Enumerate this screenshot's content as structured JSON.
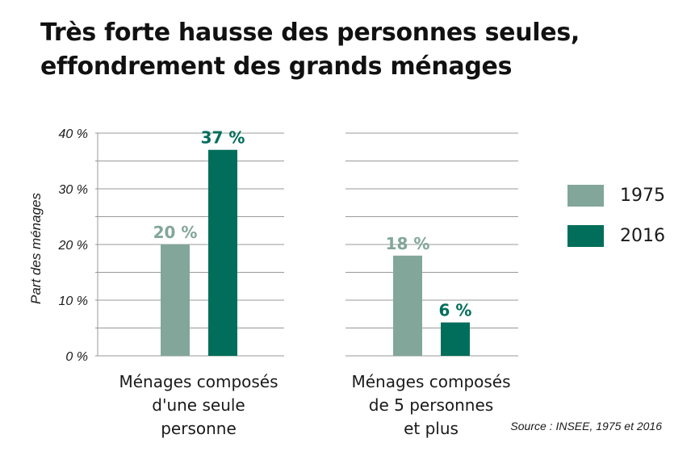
{
  "title_line1": "Très forte hausse des personnes seules,",
  "title_line2": "effondrement des grands ménages",
  "source": "Source : INSEE, 1975 et 2016",
  "colors": {
    "series_1975": "#82a69a",
    "series_2016": "#006e5a",
    "grid": "#999999"
  },
  "chart_data": {
    "type": "bar",
    "ylabel": "Part des ménages",
    "ylim": [
      0,
      40
    ],
    "yticks": [
      0,
      10,
      20,
      30,
      40
    ],
    "ytick_labels": [
      "0 %",
      "10 %",
      "20 %",
      "30 %",
      "40 %"
    ],
    "grid": true,
    "legend_position": "right",
    "categories": [
      "Ménages composés d'une seule personne",
      "Ménages composés de 5 personnes et plus"
    ],
    "category_lines": [
      [
        "Ménages composés",
        "d'une seule personne"
      ],
      [
        "Ménages composés",
        "de 5 personnes",
        "et plus"
      ]
    ],
    "series": [
      {
        "name": "1975",
        "values": [
          20,
          18
        ],
        "value_labels": [
          "20 %",
          "18 %"
        ]
      },
      {
        "name": "2016",
        "values": [
          37,
          6
        ],
        "value_labels": [
          "37 %",
          "6 %"
        ]
      }
    ]
  }
}
